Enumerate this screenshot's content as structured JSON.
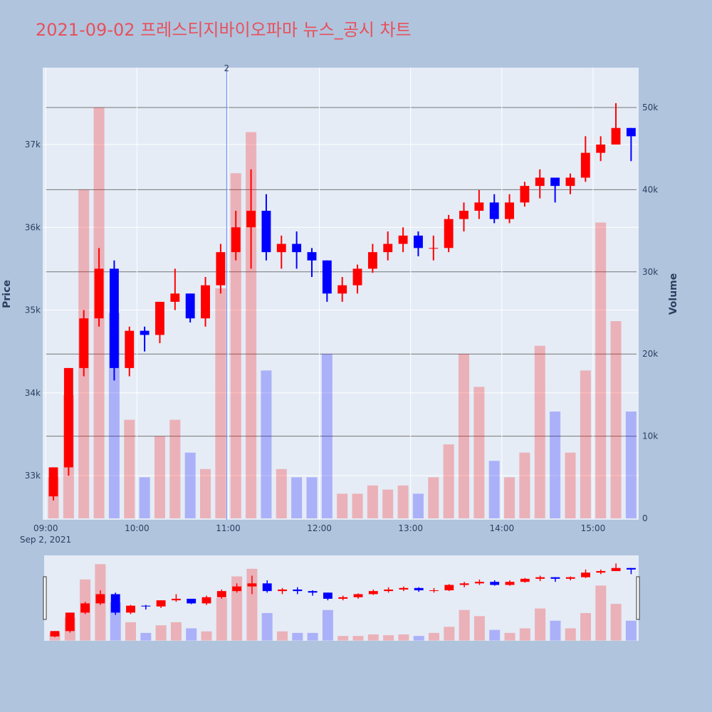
{
  "chart_data": {
    "type": "candlestick",
    "title": "2021-09-02 프레스티지바이오파마 뉴스_공시 차트",
    "y_label": "Price",
    "y2_label": "Volume",
    "x_date_label": "Sep 2, 2021",
    "x": [
      "09:00",
      "09:10",
      "09:20",
      "09:30",
      "09:40",
      "09:50",
      "10:00",
      "10:10",
      "10:20",
      "10:30",
      "10:40",
      "10:50",
      "11:00",
      "11:10",
      "11:20",
      "11:30",
      "11:40",
      "11:50",
      "12:00",
      "12:10",
      "12:20",
      "12:30",
      "12:40",
      "12:50",
      "13:00",
      "13:10",
      "13:20",
      "13:30",
      "13:40",
      "13:50",
      "14:00",
      "14:10",
      "14:20",
      "14:30",
      "14:40",
      "14:50",
      "15:00",
      "15:10",
      "15:20"
    ],
    "open": [
      32750,
      33100,
      34300,
      34900,
      35500,
      34300,
      34750,
      34700,
      35100,
      35200,
      34900,
      35300,
      35700,
      36000,
      36200,
      35700,
      35800,
      35700,
      35600,
      35200,
      35300,
      35500,
      35700,
      35800,
      35900,
      35750,
      35750,
      36100,
      36200,
      36300,
      36100,
      36300,
      36500,
      36600,
      36500,
      36600,
      36900,
      37000,
      37200
    ],
    "high": [
      33100,
      34300,
      35000,
      35750,
      35600,
      34800,
      34800,
      35100,
      35500,
      35200,
      35400,
      35800,
      36200,
      36700,
      36400,
      35900,
      35950,
      35750,
      35600,
      35400,
      35550,
      35800,
      35950,
      36000,
      35950,
      35900,
      36150,
      36300,
      36450,
      36400,
      36400,
      36550,
      36700,
      36600,
      36650,
      37100,
      37100,
      37500,
      37200
    ],
    "low": [
      32700,
      33000,
      34200,
      34800,
      34150,
      34200,
      34500,
      34600,
      35000,
      34850,
      34800,
      35200,
      35600,
      35500,
      35600,
      35500,
      35500,
      35400,
      35100,
      35100,
      35200,
      35450,
      35600,
      35700,
      35650,
      35600,
      35700,
      35950,
      36100,
      36050,
      36050,
      36250,
      36350,
      36300,
      36400,
      36550,
      36800,
      37000,
      36800
    ],
    "close": [
      33100,
      34300,
      34900,
      35500,
      34300,
      34750,
      34700,
      35100,
      35200,
      34900,
      35300,
      35700,
      36000,
      36200,
      35700,
      35800,
      35700,
      35600,
      35200,
      35300,
      35500,
      35700,
      35800,
      35900,
      35750,
      35750,
      36100,
      36200,
      36300,
      36100,
      36300,
      36500,
      36600,
      36500,
      36600,
      36900,
      37000,
      37200,
      37100
    ],
    "volume": [
      5000,
      15000,
      40000,
      50000,
      25000,
      12000,
      5000,
      10000,
      12000,
      8000,
      6000,
      28000,
      42000,
      47000,
      18000,
      6000,
      5000,
      5000,
      20000,
      3000,
      3000,
      4000,
      3500,
      4000,
      3000,
      5000,
      9000,
      20000,
      16000,
      7000,
      5000,
      8000,
      21000,
      13000,
      8000,
      18000,
      36000,
      24000,
      13000
    ],
    "increasing_color": "#ff0000",
    "decreasing_color": "#0000ff",
    "xlim": [
      "08:58",
      "15:30"
    ],
    "xticks": [
      "09:00",
      "10:00",
      "11:00",
      "12:00",
      "13:00",
      "14:00",
      "15:00"
    ],
    "ylim": [
      32467,
      37929
    ],
    "yticks": [
      {
        "value": 33000,
        "label": "33k"
      },
      {
        "value": 34000,
        "label": "34k"
      },
      {
        "value": 35000,
        "label": "35k"
      },
      {
        "value": 36000,
        "label": "36k"
      },
      {
        "value": 37000,
        "label": "37k"
      }
    ],
    "y2lim": [
      -170,
      54850
    ],
    "y2ticks": [
      0,
      {
        "value": 10000,
        "label": "10k"
      },
      {
        "value": 20000,
        "label": "20k"
      },
      {
        "value": 30000,
        "label": "30k"
      },
      {
        "value": 40000,
        "label": "40k"
      },
      {
        "value": 50000,
        "label": "50k"
      }
    ],
    "annotations": [
      {
        "x": "10:59",
        "text": "2"
      }
    ],
    "grid": true
  }
}
